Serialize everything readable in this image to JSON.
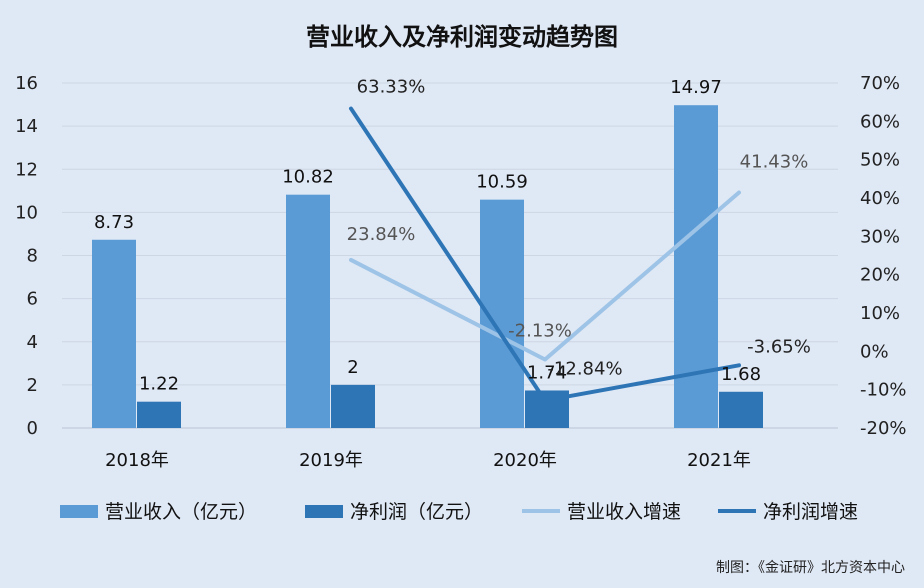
{
  "chart_data": {
    "type": "bar",
    "title": "营业收入及净利润变动趋势图",
    "categories": [
      "2018年",
      "2019年",
      "2020年",
      "2021年"
    ],
    "series": [
      {
        "name": "营业收入（亿元）",
        "kind": "bar",
        "axis": "left",
        "color": "#5b9bd5",
        "values": [
          8.73,
          10.82,
          10.59,
          14.97
        ],
        "labels": [
          "8.73",
          "10.82",
          "10.59",
          "14.97"
        ]
      },
      {
        "name": "净利润（亿元）",
        "kind": "bar",
        "axis": "left",
        "color": "#2e75b6",
        "values": [
          1.22,
          2,
          1.74,
          1.68
        ],
        "labels": [
          "1.22",
          "2",
          "1.74",
          "1.68"
        ]
      },
      {
        "name": "营业收入增速",
        "kind": "line",
        "axis": "right",
        "color": "#9dc3e6",
        "values": [
          null,
          23.84,
          -2.13,
          41.43
        ],
        "labels": [
          "",
          "23.84%",
          "-2.13%",
          "41.43%"
        ]
      },
      {
        "name": "净利润增速",
        "kind": "line",
        "axis": "right",
        "color": "#2e75b6",
        "values": [
          null,
          63.33,
          -12.84,
          -3.65
        ],
        "labels": [
          "",
          "63.33%",
          "-12.84%",
          "-3.65%"
        ]
      }
    ],
    "y_left": {
      "min": 0,
      "max": 16,
      "ticks": [
        "0",
        "2",
        "4",
        "6",
        "8",
        "10",
        "12",
        "14",
        "16"
      ]
    },
    "y_right": {
      "min": -20,
      "max": 70,
      "ticks": [
        "-20%",
        "-10%",
        "0%",
        "10%",
        "20%",
        "30%",
        "40%",
        "50%",
        "60%",
        "70%"
      ]
    },
    "grid": true,
    "legend": "bottom"
  },
  "credit": "制图：《金证研》北方资本中心"
}
